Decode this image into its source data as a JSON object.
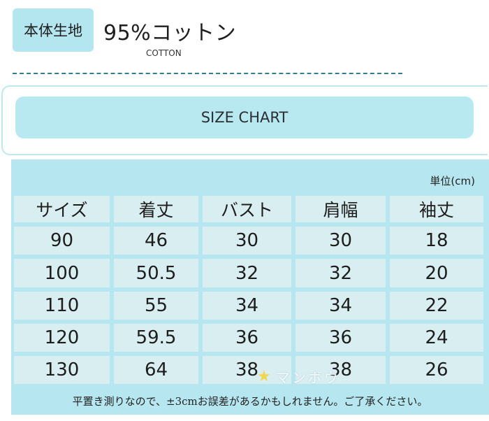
{
  "fabric": {
    "label": "本体生地",
    "value": "95%コットン",
    "sub": "COTTON"
  },
  "size_chart": {
    "title": "SIZE CHART",
    "unit": "単位(cm)",
    "columns": [
      "サイズ",
      "着丈",
      "バスト",
      "肩幅",
      "袖丈"
    ],
    "rows": [
      [
        "90",
        "46",
        "30",
        "30",
        "18"
      ],
      [
        "100",
        "50.5",
        "32",
        "32",
        "20"
      ],
      [
        "110",
        "55",
        "34",
        "34",
        "22"
      ],
      [
        "120",
        "59.5",
        "36",
        "36",
        "24"
      ],
      [
        "130",
        "64",
        "38",
        "38",
        "26"
      ]
    ]
  },
  "note": "平置き測りなので、±3cmお誤差があるかもしれません。ご了承ください。",
  "watermark": {
    "text": "マンボウ",
    "icon": "star-icon"
  },
  "colors": {
    "accent": "#b6e6ef",
    "cell": "#d9eef1",
    "rule": "#2f7f8e"
  }
}
